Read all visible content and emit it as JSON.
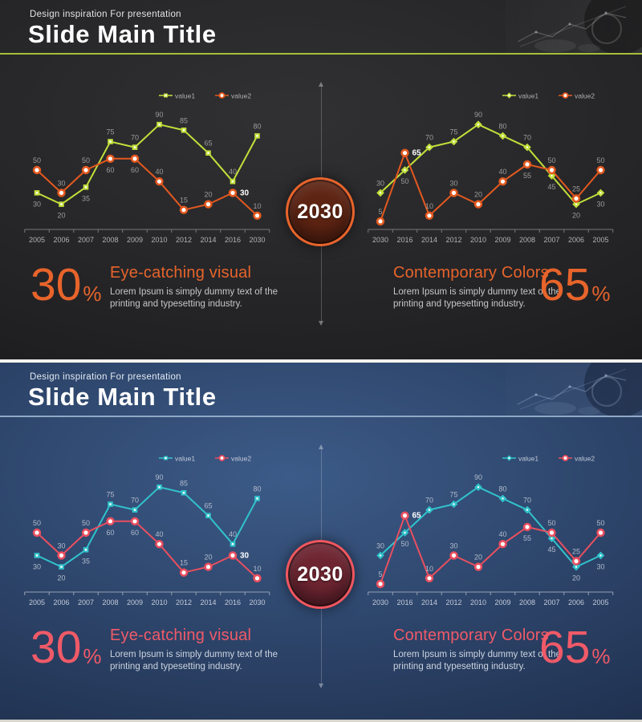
{
  "slides": [
    {
      "theme": "dark",
      "header": {
        "subtitle": "Design inspiration For presentation",
        "title": "Slide Main Title",
        "divider_color": "#a6bf39"
      },
      "center": {
        "year": "2030",
        "circle_border": "#e8642b",
        "circle_fill": "#5e2413"
      },
      "accent_color": "#e8642b",
      "stats": {
        "left": {
          "value": "30",
          "unit": "%",
          "heading": "Eye-catching visual",
          "body": "Lorem Ipsum is simply dummy text of the printing and typesetting industry."
        },
        "right": {
          "value": "65",
          "unit": "%",
          "heading": "Contemporary Colors",
          "body": "Lorem Ipsum is simply dummy text of the printing and typesetting industry."
        }
      },
      "chart_style": {
        "axis": "#787878",
        "tick_label": "#b2b2b2",
        "data_label": "#9b9b9b",
        "legend_text": "#b0b0b0",
        "highlight": "#ffffff"
      }
    },
    {
      "theme": "blue",
      "header": {
        "subtitle": "Design inspiration For presentation",
        "title": "Slide Main Title",
        "divider_color": "#8fa9c6"
      },
      "center": {
        "year": "2030",
        "circle_border": "#f0565f",
        "circle_fill": "#6d2531"
      },
      "accent_color": "#f05a68",
      "stats": {
        "left": {
          "value": "30",
          "unit": "%",
          "heading": "Eye-catching visual",
          "body": "Lorem Ipsum is simply dummy text of the printing and typesetting industry."
        },
        "right": {
          "value": "65",
          "unit": "%",
          "heading": "Contemporary Colors",
          "body": "Lorem Ipsum is simply dummy text of the printing and typesetting industry."
        }
      },
      "chart_style": {
        "axis": "#94a0b5",
        "tick_label": "#c4cbda",
        "data_label": "#b2bccd",
        "legend_text": "#c4cbda",
        "highlight": "#ffffff"
      }
    }
  ],
  "chart_data": [
    {
      "id": "dark-left",
      "type": "line",
      "categories": [
        "2005",
        "2006",
        "2007",
        "2008",
        "2009",
        "2010",
        "2012",
        "2014",
        "2016",
        "2030"
      ],
      "series": [
        {
          "name": "value1",
          "values": [
            30,
            20,
            35,
            75,
            70,
            90,
            85,
            65,
            40,
            80
          ],
          "color": "#c2e03a",
          "marker": "square"
        },
        {
          "name": "value2",
          "values": [
            50,
            30,
            50,
            60,
            60,
            40,
            15,
            20,
            30,
            10
          ],
          "color": "#e4591f",
          "marker": "circle",
          "highlight_index": 8
        }
      ],
      "ylim": [
        0,
        100
      ],
      "grid": false,
      "legend_position": "top-right"
    },
    {
      "id": "dark-right",
      "type": "line",
      "categories": [
        "2030",
        "2016",
        "2014",
        "2012",
        "2010",
        "2009",
        "2008",
        "2007",
        "2006",
        "2005"
      ],
      "series": [
        {
          "name": "value1",
          "values": [
            30,
            50,
            70,
            75,
            90,
            80,
            70,
            45,
            20,
            30
          ],
          "color": "#c2e03a",
          "marker": "diamond"
        },
        {
          "name": "value2",
          "values": [
            5,
            65,
            10,
            30,
            20,
            40,
            55,
            50,
            25,
            50
          ],
          "color": "#e4591f",
          "marker": "circle",
          "highlight_index": 1
        }
      ],
      "ylim": [
        0,
        100
      ],
      "grid": false,
      "legend_position": "top-right"
    },
    {
      "id": "blue-left",
      "type": "line",
      "categories": [
        "2005",
        "2006",
        "2007",
        "2008",
        "2009",
        "2010",
        "2012",
        "2014",
        "2016",
        "2030"
      ],
      "series": [
        {
          "name": "value1",
          "values": [
            30,
            20,
            35,
            75,
            70,
            90,
            85,
            65,
            40,
            80
          ],
          "color": "#31c3cc",
          "marker": "square"
        },
        {
          "name": "value2",
          "values": [
            50,
            30,
            50,
            60,
            60,
            40,
            15,
            20,
            30,
            10
          ],
          "color": "#ea4f5f",
          "marker": "circle",
          "highlight_index": 8
        }
      ],
      "ylim": [
        0,
        100
      ],
      "grid": false,
      "legend_position": "top-right"
    },
    {
      "id": "blue-right",
      "type": "line",
      "categories": [
        "2030",
        "2016",
        "2014",
        "2012",
        "2010",
        "2009",
        "2008",
        "2007",
        "2006",
        "2005"
      ],
      "series": [
        {
          "name": "value1",
          "values": [
            30,
            50,
            70,
            75,
            90,
            80,
            70,
            45,
            20,
            30
          ],
          "color": "#31c3cc",
          "marker": "diamond"
        },
        {
          "name": "value2",
          "values": [
            5,
            65,
            10,
            30,
            20,
            40,
            55,
            50,
            25,
            50
          ],
          "color": "#ea4f5f",
          "marker": "circle",
          "highlight_index": 1
        }
      ],
      "ylim": [
        0,
        100
      ],
      "grid": false,
      "legend_position": "top-right"
    }
  ]
}
